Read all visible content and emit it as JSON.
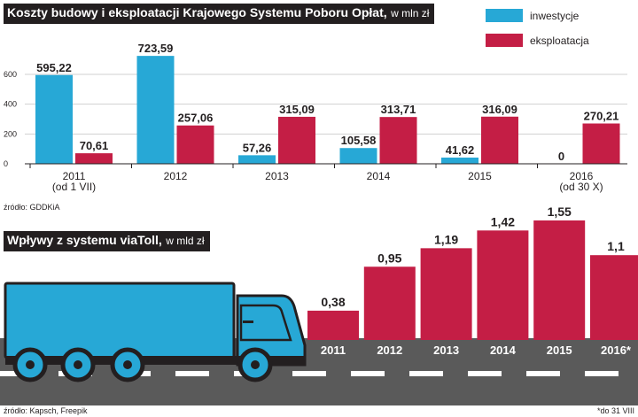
{
  "colors": {
    "investment": "#27a8d6",
    "operation": "#c41e45",
    "viatoll": "#c41e45",
    "truck": "#27a8d6",
    "road": "#5a5a5a",
    "ink": "#231f20"
  },
  "top": {
    "title": "Koszty budowy i eksploatacji Krajowego Systemu Poboru Opłat,",
    "unit": "w mln zł",
    "source": "źródło: GDDKiA"
  },
  "bottom": {
    "title": "Wpływy z systemu viaToll,",
    "unit": "w mld zł",
    "source": "źródło: Kapsch, Freepik",
    "footnote": "*do 31 VIII"
  },
  "chart_data": [
    {
      "type": "bar",
      "title": "Koszty budowy i eksploatacji Krajowego Systemu Poboru Opłat, w mln zł",
      "categories": [
        [
          "2011",
          "(od 1 VII)"
        ],
        [
          "2012"
        ],
        [
          "2013"
        ],
        [
          "2014"
        ],
        [
          "2015"
        ],
        [
          "2016",
          "(od 30 X)"
        ]
      ],
      "series": [
        {
          "name": "inwestycje",
          "values": [
            595.22,
            723.59,
            57.26,
            105.58,
            41.62,
            0
          ],
          "labels": [
            "595,22",
            "723,59",
            "57,26",
            "105,58",
            "41,62",
            "0"
          ]
        },
        {
          "name": "eksploatacja",
          "values": [
            70.61,
            257.06,
            315.09,
            313.71,
            316.09,
            270.21
          ],
          "labels": [
            "70,61",
            "257,06",
            "315,09",
            "313,71",
            "316,09",
            "270,21"
          ]
        }
      ],
      "yticks": [
        "0",
        "200",
        "400",
        "600"
      ],
      "ytick_values": [
        0,
        200,
        400,
        600
      ],
      "ylim": [
        0,
        760
      ],
      "legend": "top-right"
    },
    {
      "type": "bar",
      "title": "Wpływy z systemu viaToll, w mld zł",
      "categories": [
        "2011",
        "2012",
        "2013",
        "2014",
        "2015",
        "2016*"
      ],
      "values": [
        0.38,
        0.95,
        1.19,
        1.42,
        1.55,
        1.1
      ],
      "labels": [
        "0,38",
        "0,95",
        "1,19",
        "1,42",
        "1,55",
        "1,1"
      ],
      "ylim": [
        0,
        1.6
      ]
    }
  ]
}
